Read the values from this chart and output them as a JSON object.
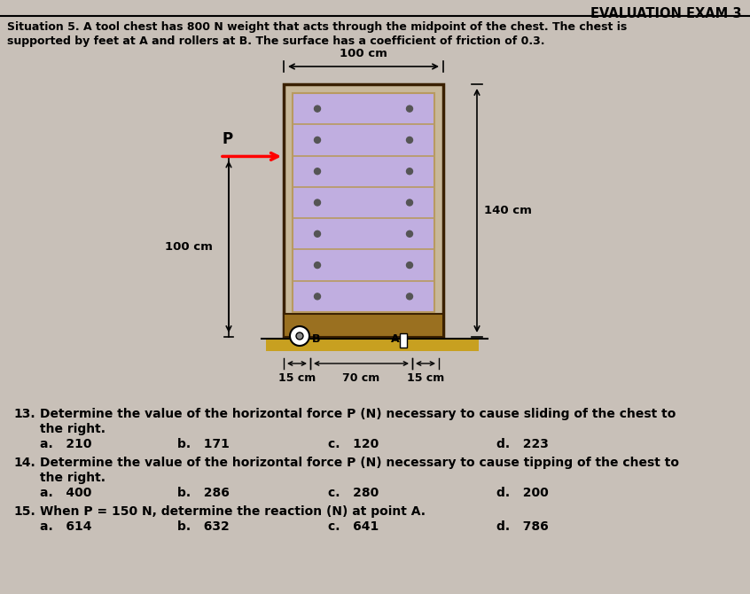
{
  "title": "EVALUATION EXAM 3",
  "situation_text_line1": "Situation 5. A tool chest has 800 N weight that acts through the midpoint of the chest. The chest is",
  "situation_text_line2": "supported by feet at A and rollers at B. The surface has a coefficient of friction of 0.3.",
  "chest_color": "#c8b89a",
  "chest_border_color": "#3a2000",
  "drawer_bg_color": "#c0aee0",
  "drawer_line_color": "#b89a60",
  "ground_color": "#c8a020",
  "background_color": "#c8c0b8",
  "roller_color": "#ffffff",
  "questions": [
    {
      "num": "13.",
      "text_line1": "Determine the value of the horizontal force P (N) necessary to cause sliding of the chest to",
      "text_line2": "the right.",
      "choices_line1": [
        "a.   210",
        "b.   171",
        "c.   120",
        "d.   223"
      ]
    },
    {
      "num": "14.",
      "text_line1": "Determine the value of the horizontal force P (N) necessary to cause tipping of the chest to",
      "text_line2": "the right.",
      "choices_line1": [
        "a.   400",
        "b.   286",
        "c.   280",
        "d.   200"
      ]
    },
    {
      "num": "15.",
      "text_line1": "When P = 150 N, determine the reaction (N) at point A.",
      "text_line2": null,
      "choices_line1": [
        "a.   614",
        "b.   632",
        "c.   641",
        "d.   786"
      ]
    }
  ],
  "fig_width": 8.46,
  "fig_height": 6.7,
  "dpi": 100
}
